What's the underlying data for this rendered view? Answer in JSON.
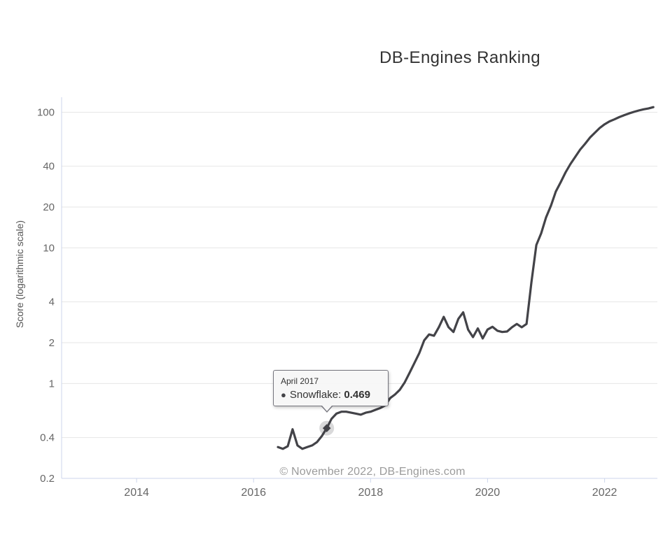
{
  "chart": {
    "title": "DB-Engines Ranking",
    "y_axis_title": "Score (logarithmic scale)",
    "credits": "© November 2022, DB-Engines.com"
  },
  "tooltip": {
    "heading": "April 2017",
    "bullet": "●",
    "series_name": "Snowflake",
    "separator": ": ",
    "value": "0.469"
  },
  "colors": {
    "series": "#434348",
    "grid": "#e6e6e6",
    "axis_line": "#ccd6eb",
    "tick_label": "#666666",
    "title": "#333333",
    "axis_title": "#555555",
    "credits": "#9b9b9b",
    "tooltip_border": "#75757d",
    "tooltip_bg": "rgba(247,247,247,0.96)"
  },
  "chart_data": {
    "type": "line",
    "title": "DB-Engines Ranking",
    "xlabel": "",
    "ylabel": "Score (logarithmic scale)",
    "y_scale": "logarithmic",
    "ylim": [
      0.2,
      129
    ],
    "xlim": [
      2012.718,
      2022.903
    ],
    "y_ticks": [
      0.2,
      0.4,
      1,
      2,
      4,
      10,
      20,
      40,
      100
    ],
    "x_ticks": [
      2014,
      2016,
      2018,
      2020,
      2022
    ],
    "grid": true,
    "legend_position": "none",
    "highlight_point": {
      "month": "2017-04",
      "value": 0.469,
      "label": "April 2017"
    },
    "series": [
      {
        "name": "Snowflake",
        "color": "#434348",
        "points": [
          [
            "2016-06",
            0.34
          ],
          [
            "2016-07",
            0.33
          ],
          [
            "2016-08",
            0.345
          ],
          [
            "2016-09",
            0.46
          ],
          [
            "2016-10",
            0.35
          ],
          [
            "2016-11",
            0.33
          ],
          [
            "2016-12",
            0.34
          ],
          [
            "2017-01",
            0.35
          ],
          [
            "2017-02",
            0.37
          ],
          [
            "2017-03",
            0.41
          ],
          [
            "2017-04",
            0.469
          ],
          [
            "2017-05",
            0.55
          ],
          [
            "2017-06",
            0.6
          ],
          [
            "2017-07",
            0.62
          ],
          [
            "2017-08",
            0.62
          ],
          [
            "2017-09",
            0.61
          ],
          [
            "2017-10",
            0.6
          ],
          [
            "2017-11",
            0.59
          ],
          [
            "2017-12",
            0.61
          ],
          [
            "2018-01",
            0.62
          ],
          [
            "2018-02",
            0.64
          ],
          [
            "2018-03",
            0.66
          ],
          [
            "2018-04",
            0.69
          ],
          [
            "2018-05",
            0.78
          ],
          [
            "2018-06",
            0.83
          ],
          [
            "2018-07",
            0.9
          ],
          [
            "2018-08",
            1.02
          ],
          [
            "2018-09",
            1.2
          ],
          [
            "2018-10",
            1.42
          ],
          [
            "2018-11",
            1.68
          ],
          [
            "2018-12",
            2.08
          ],
          [
            "2019-01",
            2.3
          ],
          [
            "2019-02",
            2.25
          ],
          [
            "2019-03",
            2.6
          ],
          [
            "2019-04",
            3.1
          ],
          [
            "2019-05",
            2.6
          ],
          [
            "2019-06",
            2.4
          ],
          [
            "2019-07",
            3.0
          ],
          [
            "2019-08",
            3.35
          ],
          [
            "2019-09",
            2.5
          ],
          [
            "2019-10",
            2.2
          ],
          [
            "2019-11",
            2.55
          ],
          [
            "2019-12",
            2.15
          ],
          [
            "2020-01",
            2.5
          ],
          [
            "2020-02",
            2.62
          ],
          [
            "2020-03",
            2.45
          ],
          [
            "2020-04",
            2.4
          ],
          [
            "2020-05",
            2.42
          ],
          [
            "2020-06",
            2.6
          ],
          [
            "2020-07",
            2.75
          ],
          [
            "2020-08",
            2.6
          ],
          [
            "2020-09",
            2.75
          ],
          [
            "2020-10",
            5.6
          ],
          [
            "2020-11",
            10.5
          ],
          [
            "2020-12",
            12.8
          ],
          [
            "2021-01",
            16.8
          ],
          [
            "2021-02",
            20.5
          ],
          [
            "2021-03",
            26.0
          ],
          [
            "2021-04",
            30.5
          ],
          [
            "2021-05",
            36.0
          ],
          [
            "2021-06",
            41.5
          ],
          [
            "2021-07",
            47.0
          ],
          [
            "2021-08",
            53.0
          ],
          [
            "2021-09",
            58.5
          ],
          [
            "2021-10",
            65.0
          ],
          [
            "2021-11",
            70.5
          ],
          [
            "2021-12",
            76.5
          ],
          [
            "2022-01",
            81.5
          ],
          [
            "2022-02",
            85.5
          ],
          [
            "2022-03",
            88.5
          ],
          [
            "2022-04",
            92.0
          ],
          [
            "2022-05",
            95.0
          ],
          [
            "2022-06",
            98.0
          ],
          [
            "2022-07",
            100.5
          ],
          [
            "2022-08",
            103.0
          ],
          [
            "2022-09",
            105.0
          ],
          [
            "2022-10",
            106.5
          ],
          [
            "2022-11",
            109.0
          ]
        ]
      }
    ]
  }
}
